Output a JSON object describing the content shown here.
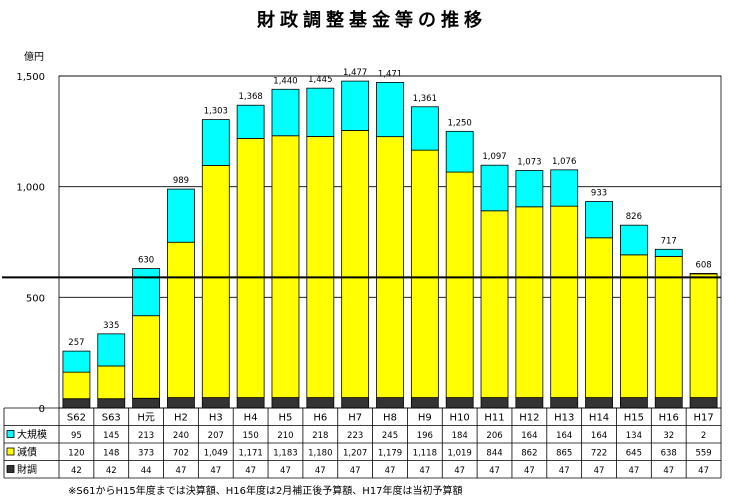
{
  "chart_data": {
    "type": "bar",
    "stacked": true,
    "title": "財政調整基金等の推移",
    "unit": "億円",
    "ylim": [
      0,
      1500
    ],
    "yticks": [
      "0",
      "500",
      "1,000",
      "1,500"
    ],
    "ytick_values": [
      0,
      500,
      1000,
      1500
    ],
    "grid": true,
    "reference_line_value": 590,
    "categories": [
      "S62",
      "S63",
      "H元",
      "H2",
      "H3",
      "H4",
      "H5",
      "H6",
      "H7",
      "H8",
      "H9",
      "H10",
      "H11",
      "H12",
      "H13",
      "H14",
      "H15",
      "H16",
      "H17"
    ],
    "series": [
      {
        "name": "財調",
        "color": "#333333",
        "values": [
          42,
          42,
          44,
          47,
          47,
          47,
          47,
          47,
          47,
          47,
          47,
          47,
          47,
          47,
          47,
          47,
          47,
          47,
          47
        ],
        "labels": [
          "42",
          "42",
          "44",
          "47",
          "47",
          "47",
          "47",
          "47",
          "47",
          "47",
          "47",
          "47",
          "47",
          "47",
          "47",
          "47",
          "47",
          "47",
          "47"
        ]
      },
      {
        "name": "減債",
        "color": "#ffff00",
        "values": [
          120,
          148,
          373,
          702,
          1049,
          1171,
          1183,
          1180,
          1207,
          1179,
          1118,
          1019,
          844,
          862,
          865,
          722,
          645,
          638,
          559
        ],
        "labels": [
          "120",
          "148",
          "373",
          "702",
          "1,049",
          "1,171",
          "1,183",
          "1,180",
          "1,207",
          "1,179",
          "1,118",
          "1,019",
          "844",
          "862",
          "865",
          "722",
          "645",
          "638",
          "559"
        ]
      },
      {
        "name": "大規模",
        "color": "#00ffff",
        "values": [
          95,
          145,
          213,
          240,
          207,
          150,
          210,
          218,
          223,
          245,
          196,
          184,
          206,
          164,
          164,
          164,
          134,
          32,
          2
        ],
        "labels": [
          "95",
          "145",
          "213",
          "240",
          "207",
          "150",
          "210",
          "218",
          "223",
          "245",
          "196",
          "184",
          "206",
          "164",
          "164",
          "164",
          "134",
          "32",
          "2"
        ]
      }
    ],
    "totals": [
      257,
      335,
      630,
      989,
      1303,
      1368,
      1440,
      1445,
      1477,
      1471,
      1361,
      1250,
      1097,
      1073,
      1076,
      933,
      826,
      717,
      608
    ],
    "total_labels": [
      "257",
      "335",
      "630",
      "989",
      "1,303",
      "1,368",
      "1,440",
      "1,445",
      "1,477",
      "1,471",
      "1,361",
      "1,250",
      "1,097",
      "1,073",
      "1,076",
      "933",
      "826",
      "717",
      "608"
    ],
    "table_rows": [
      {
        "label": "大規模",
        "series": 2
      },
      {
        "label": "減債",
        "series": 1
      },
      {
        "label": "財調",
        "series": 0
      }
    ],
    "note": "※S61からH15年度までは決算額、H16年度は2月補正後予算額、H17年度は当初予算額"
  }
}
